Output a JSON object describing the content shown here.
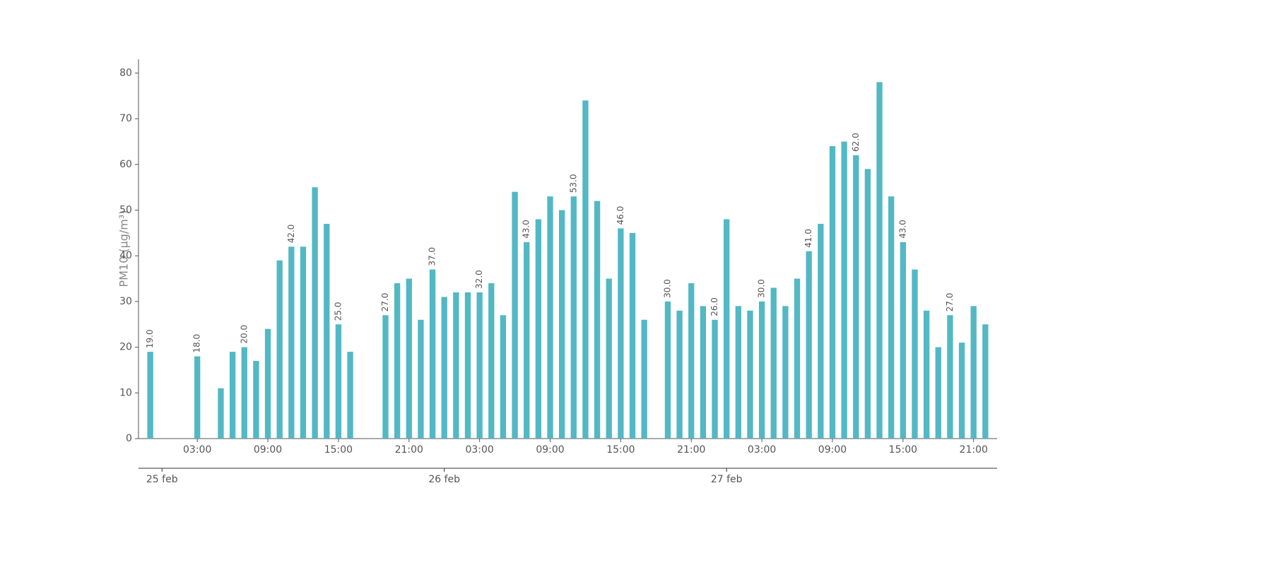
{
  "chart_data": {
    "type": "bar",
    "y_label": "PM10 (μg/m³)",
    "color": "#52b8c4",
    "x": [
      -1,
      3,
      5,
      6,
      7,
      8,
      9,
      10,
      11,
      12,
      13,
      14,
      15,
      16,
      19,
      20,
      21,
      22,
      23,
      24,
      25,
      26,
      27,
      28,
      29,
      30,
      31,
      32,
      33,
      34,
      35,
      36,
      37,
      38,
      39,
      40,
      41,
      43,
      44,
      45,
      46,
      47,
      48,
      49,
      50,
      51,
      52,
      53,
      54,
      55,
      56,
      57,
      58,
      59,
      60,
      61,
      62,
      63,
      64,
      65,
      66,
      67,
      68,
      69,
      70
    ],
    "values": [
      19,
      18,
      11,
      19,
      20,
      17,
      24,
      39,
      42,
      42,
      55,
      47,
      25,
      19,
      27,
      34,
      35,
      26,
      37,
      31,
      32,
      32,
      32,
      34,
      27,
      54,
      43,
      48,
      53,
      50,
      53,
      74,
      52,
      35,
      46,
      45,
      26,
      30,
      28,
      34,
      29,
      26,
      48,
      29,
      28,
      30,
      33,
      29,
      35,
      41,
      47,
      64,
      65,
      62,
      59,
      78,
      53,
      43,
      37,
      28,
      20,
      27,
      21,
      29,
      25
    ],
    "value_labels": [
      "19.0",
      "18.0",
      null,
      null,
      "20.0",
      null,
      null,
      null,
      "42.0",
      null,
      null,
      null,
      "25.0",
      null,
      "27.0",
      null,
      null,
      null,
      "37.0",
      null,
      null,
      null,
      "32.0",
      null,
      null,
      null,
      "43.0",
      null,
      null,
      null,
      "53.0",
      null,
      null,
      null,
      "46.0",
      null,
      null,
      "30.0",
      null,
      null,
      null,
      "26.0",
      null,
      null,
      null,
      "30.0",
      null,
      null,
      null,
      "41.0",
      null,
      null,
      null,
      "62.0",
      null,
      null,
      null,
      "43.0",
      null,
      null,
      null,
      "27.0",
      null,
      null,
      null
    ],
    "xlim": [
      -2,
      71
    ],
    "xticks": [
      {
        "value": 3,
        "label": "03:00"
      },
      {
        "value": 9,
        "label": "09:00"
      },
      {
        "value": 15,
        "label": "15:00"
      },
      {
        "value": 21,
        "label": "21:00"
      },
      {
        "value": 27,
        "label": "03:00"
      },
      {
        "value": 33,
        "label": "09:00"
      },
      {
        "value": 39,
        "label": "15:00"
      },
      {
        "value": 45,
        "label": "21:00"
      },
      {
        "value": 51,
        "label": "03:00"
      },
      {
        "value": 57,
        "label": "09:00"
      },
      {
        "value": 63,
        "label": "15:00"
      },
      {
        "value": 69,
        "label": "21:00"
      }
    ],
    "date_ticks": [
      {
        "value": 0,
        "label": "25 feb"
      },
      {
        "value": 24,
        "label": "26 feb"
      },
      {
        "value": 48,
        "label": "27 feb"
      }
    ],
    "ylim": [
      0,
      83
    ],
    "yticks": [
      0,
      10,
      20,
      30,
      40,
      50,
      60,
      70,
      80
    ]
  }
}
